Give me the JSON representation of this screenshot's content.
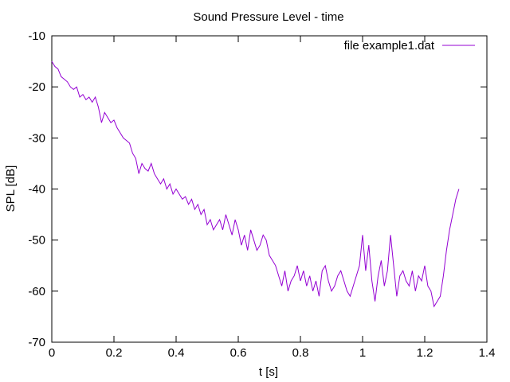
{
  "chart_data": {
    "type": "line",
    "title": "Sound Pressure Level - time",
    "xlabel": "t [s]",
    "ylabel": "SPL [dB]",
    "xlim": [
      0,
      1.4
    ],
    "ylim": [
      -70,
      -10
    ],
    "xticks": [
      "0",
      "0.2",
      "0.4",
      "0.6",
      "0.8",
      "1",
      "1.2",
      "1.4"
    ],
    "yticks": [
      "-10",
      "-20",
      "-30",
      "-40",
      "-50",
      "-60",
      "-70"
    ],
    "grid": false,
    "legend_position": "top-right",
    "series": [
      {
        "name": "file example1.dat",
        "color": "#9400d3",
        "x": [
          0,
          0.01,
          0.02,
          0.03,
          0.04,
          0.05,
          0.06,
          0.07,
          0.08,
          0.09,
          0.1,
          0.11,
          0.12,
          0.13,
          0.14,
          0.15,
          0.16,
          0.17,
          0.18,
          0.19,
          0.2,
          0.21,
          0.22,
          0.23,
          0.24,
          0.25,
          0.26,
          0.27,
          0.28,
          0.29,
          0.3,
          0.31,
          0.32,
          0.33,
          0.34,
          0.35,
          0.36,
          0.37,
          0.38,
          0.39,
          0.4,
          0.41,
          0.42,
          0.43,
          0.44,
          0.45,
          0.46,
          0.47,
          0.48,
          0.49,
          0.5,
          0.51,
          0.52,
          0.53,
          0.54,
          0.55,
          0.56,
          0.57,
          0.58,
          0.59,
          0.6,
          0.61,
          0.62,
          0.63,
          0.64,
          0.65,
          0.66,
          0.67,
          0.68,
          0.69,
          0.7,
          0.71,
          0.72,
          0.73,
          0.74,
          0.75,
          0.76,
          0.77,
          0.78,
          0.79,
          0.8,
          0.81,
          0.82,
          0.83,
          0.84,
          0.85,
          0.86,
          0.87,
          0.88,
          0.89,
          0.9,
          0.91,
          0.92,
          0.93,
          0.94,
          0.95,
          0.96,
          0.97,
          0.98,
          0.99,
          1.0,
          1.01,
          1.02,
          1.03,
          1.04,
          1.05,
          1.06,
          1.07,
          1.08,
          1.09,
          1.1,
          1.11,
          1.12,
          1.13,
          1.14,
          1.15,
          1.16,
          1.17,
          1.18,
          1.19,
          1.2,
          1.21,
          1.22,
          1.23,
          1.24,
          1.25,
          1.26,
          1.27,
          1.28,
          1.29,
          1.3,
          1.31
        ],
        "values": [
          -15,
          -16,
          -16.5,
          -18,
          -18.5,
          -19,
          -20,
          -20.5,
          -20,
          -22,
          -21.5,
          -22.5,
          -22,
          -23,
          -22,
          -24,
          -27,
          -25,
          -26,
          -27,
          -26.5,
          -28,
          -29,
          -30,
          -30.5,
          -31,
          -33,
          -34,
          -37,
          -35,
          -36,
          -36.5,
          -35,
          -37,
          -38,
          -39,
          -38,
          -40,
          -39,
          -41,
          -40,
          -41,
          -42,
          -41.5,
          -43,
          -42,
          -44,
          -43,
          -45,
          -44,
          -47,
          -46,
          -48,
          -47,
          -46,
          -48,
          -45,
          -47,
          -49,
          -46,
          -48,
          -51,
          -49,
          -52,
          -48,
          -50,
          -52,
          -51,
          -49,
          -50,
          -53,
          -54,
          -55,
          -57,
          -59,
          -56,
          -60,
          -58,
          -57,
          -55,
          -58,
          -56,
          -59,
          -57,
          -60,
          -58,
          -61,
          -56,
          -55,
          -58,
          -60,
          -59,
          -57,
          -56,
          -58,
          -60,
          -61,
          -59,
          -57,
          -55,
          -49,
          -56,
          -51,
          -58,
          -62,
          -57,
          -54,
          -59,
          -56,
          -49,
          -55,
          -61,
          -57,
          -56,
          -58,
          -59,
          -56,
          -60,
          -57,
          -58,
          -55,
          -59,
          -60,
          -63,
          -62,
          -61,
          -57,
          -52,
          -48,
          -45,
          -42,
          -40
        ]
      }
    ]
  }
}
